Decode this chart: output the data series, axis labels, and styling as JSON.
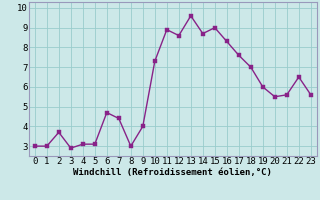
{
  "x": [
    0,
    1,
    2,
    3,
    4,
    5,
    6,
    7,
    8,
    9,
    10,
    11,
    12,
    13,
    14,
    15,
    16,
    17,
    18,
    19,
    20,
    21,
    22,
    23
  ],
  "y": [
    3.0,
    3.0,
    3.7,
    2.9,
    3.1,
    3.1,
    4.7,
    4.4,
    3.0,
    4.0,
    7.3,
    8.9,
    8.6,
    9.6,
    8.7,
    9.0,
    8.3,
    7.6,
    7.0,
    6.0,
    5.5,
    5.6,
    6.5,
    5.6
  ],
  "line_color": "#882288",
  "marker_color": "#882288",
  "bg_color": "#cce8e8",
  "grid_color": "#99cccc",
  "xlabel": "Windchill (Refroidissement éolien,°C)",
  "xlim": [
    -0.5,
    23.5
  ],
  "ylim": [
    2.5,
    10.3
  ],
  "yticks": [
    3,
    4,
    5,
    6,
    7,
    8,
    9,
    10
  ],
  "xticks": [
    0,
    1,
    2,
    3,
    4,
    5,
    6,
    7,
    8,
    9,
    10,
    11,
    12,
    13,
    14,
    15,
    16,
    17,
    18,
    19,
    20,
    21,
    22,
    23
  ],
  "xlabel_fontsize": 6.5,
  "tick_fontsize": 6.5,
  "line_width": 1.0,
  "marker_size": 2.5,
  "spine_color": "#9999bb"
}
